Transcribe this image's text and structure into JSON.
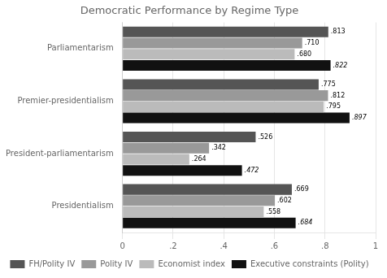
{
  "chart_data": {
    "type": "bar",
    "orientation": "horizontal",
    "title": "Democratic Performance by Regime Type",
    "categories": [
      "Parliamentarism",
      "Premier-presidentialism",
      "President-parliamentarism",
      "Presidentialism"
    ],
    "series": [
      {
        "name": "FH/Polity IV",
        "color": "#555555",
        "values": [
          0.813,
          0.775,
          0.526,
          0.669
        ],
        "value_labels": [
          ".813",
          ".775",
          ".526",
          ".669"
        ]
      },
      {
        "name": "Polity IV",
        "color": "#999999",
        "values": [
          0.71,
          0.812,
          0.342,
          0.602
        ],
        "value_labels": [
          ".710",
          ".812",
          ".342",
          ".602"
        ]
      },
      {
        "name": "Economist index",
        "color": "#bbbbbb",
        "values": [
          0.68,
          0.795,
          0.264,
          0.558
        ],
        "value_labels": [
          ".680",
          ".795",
          ".264",
          ".558"
        ]
      },
      {
        "name": "Executive constraints (Polity)",
        "color": "#111111",
        "values": [
          0.822,
          0.897,
          0.472,
          0.684
        ],
        "value_labels": [
          ".822",
          ".897",
          ".472",
          ".684"
        ]
      }
    ],
    "xlim": [
      0,
      1
    ],
    "xticks": [
      0,
      {
        "value": 0.2,
        "label": ".2"
      },
      {
        "value": 0.4,
        "label": ".4"
      },
      {
        "value": 0.6,
        "label": ".6"
      },
      {
        "value": 0.8,
        "label": ".8"
      },
      1
    ],
    "grid": "x",
    "legend": "bottom",
    "data_labels": true
  }
}
